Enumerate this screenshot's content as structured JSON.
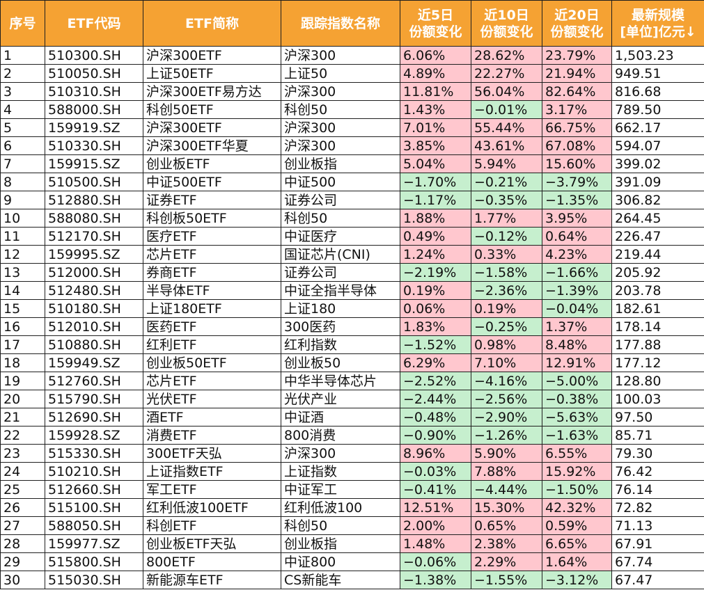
{
  "colors": {
    "header_bg": "#f5a233",
    "header_text": "#ffffff",
    "positive_bg": "#ffc7ce",
    "positive_text": "#9c0006",
    "negative_bg": "#c6efce",
    "negative_text": "#006100"
  },
  "header": {
    "index": "序号",
    "code": "ETF代码",
    "name": "ETF简称",
    "tracked_index": "跟踪指数名称",
    "chg5_line1": "近5日",
    "chg5_line2": "份额变化",
    "chg10_line1": "近10日",
    "chg10_line2": "份额变化",
    "chg20_line1": "近20日",
    "chg20_line2": "份额变化",
    "size_line1": "最新规模",
    "size_line2": "[单位]亿元↓"
  },
  "rows": [
    {
      "index": "1",
      "code": "510300.SH",
      "name": "沪深300ETF",
      "tracked": "沪深300",
      "chg5": "6.06%",
      "chg10": "28.62%",
      "chg20": "23.79%",
      "size": "1,503.23"
    },
    {
      "index": "2",
      "code": "510050.SH",
      "name": "上证50ETF",
      "tracked": "上证50",
      "chg5": "4.89%",
      "chg10": "22.27%",
      "chg20": "21.94%",
      "size": "949.51"
    },
    {
      "index": "3",
      "code": "510310.SH",
      "name": "沪深300ETF易方达",
      "tracked": "沪深300",
      "chg5": "11.81%",
      "chg10": "56.04%",
      "chg20": "82.64%",
      "size": "816.68"
    },
    {
      "index": "4",
      "code": "588000.SH",
      "name": "科创50ETF",
      "tracked": "科创50",
      "chg5": "1.43%",
      "chg10": "−0.01%",
      "chg20": "3.17%",
      "size": "789.50"
    },
    {
      "index": "5",
      "code": "159919.SZ",
      "name": "沪深300ETF",
      "tracked": "沪深300",
      "chg5": "7.01%",
      "chg10": "55.44%",
      "chg20": "66.75%",
      "size": "662.17"
    },
    {
      "index": "6",
      "code": "510330.SH",
      "name": "沪深300ETF华夏",
      "tracked": "沪深300",
      "chg5": "3.85%",
      "chg10": "43.61%",
      "chg20": "67.08%",
      "size": "594.07"
    },
    {
      "index": "7",
      "code": "159915.SZ",
      "name": "创业板ETF",
      "tracked": "创业板指",
      "chg5": "5.04%",
      "chg10": "5.94%",
      "chg20": "15.60%",
      "size": "399.02"
    },
    {
      "index": "8",
      "code": "510500.SH",
      "name": "中证500ETF",
      "tracked": "中证500",
      "chg5": "−1.70%",
      "chg10": "−0.21%",
      "chg20": "−3.79%",
      "size": "391.09"
    },
    {
      "index": "9",
      "code": "512880.SH",
      "name": "证券ETF",
      "tracked": "证券公司",
      "chg5": "−1.17%",
      "chg10": "−0.35%",
      "chg20": "−1.35%",
      "size": "306.82"
    },
    {
      "index": "10",
      "code": "588080.SH",
      "name": "科创板50ETF",
      "tracked": "科创50",
      "chg5": "1.88%",
      "chg10": "1.77%",
      "chg20": "3.95%",
      "size": "264.45"
    },
    {
      "index": "11",
      "code": "512170.SH",
      "name": "医疗ETF",
      "tracked": "中证医疗",
      "chg5": "0.49%",
      "chg10": "−0.12%",
      "chg20": "0.64%",
      "size": "226.47"
    },
    {
      "index": "12",
      "code": "159995.SZ",
      "name": "芯片ETF",
      "tracked": "国证芯片(CNI)",
      "chg5": "1.24%",
      "chg10": "0.33%",
      "chg20": "4.23%",
      "size": "219.44"
    },
    {
      "index": "13",
      "code": "512000.SH",
      "name": "券商ETF",
      "tracked": "证券公司",
      "chg5": "−2.19%",
      "chg10": "−1.58%",
      "chg20": "−1.66%",
      "size": "205.92"
    },
    {
      "index": "14",
      "code": "512480.SH",
      "name": "半导体ETF",
      "tracked": "中证全指半导体",
      "chg5": "0.19%",
      "chg10": "−2.36%",
      "chg20": "−1.39%",
      "size": "203.78"
    },
    {
      "index": "15",
      "code": "510180.SH",
      "name": "上证180ETF",
      "tracked": "上证180",
      "chg5": "0.06%",
      "chg10": "0.19%",
      "chg20": "−0.04%",
      "size": "182.61"
    },
    {
      "index": "16",
      "code": "512010.SH",
      "name": "医药ETF",
      "tracked": "300医药",
      "chg5": "1.83%",
      "chg10": "−0.25%",
      "chg20": "1.37%",
      "size": "178.14"
    },
    {
      "index": "17",
      "code": "510880.SH",
      "name": "红利ETF",
      "tracked": "红利指数",
      "chg5": "−1.52%",
      "chg10": "0.98%",
      "chg20": "8.48%",
      "size": "177.88"
    },
    {
      "index": "18",
      "code": "159949.SZ",
      "name": "创业板50ETF",
      "tracked": "创业板50",
      "chg5": "6.29%",
      "chg10": "7.10%",
      "chg20": "12.91%",
      "size": "177.12"
    },
    {
      "index": "19",
      "code": "512760.SH",
      "name": "芯片ETF",
      "tracked": "中华半导体芯片",
      "chg5": "−2.52%",
      "chg10": "−4.16%",
      "chg20": "−5.00%",
      "size": "128.80"
    },
    {
      "index": "20",
      "code": "515790.SH",
      "name": "光伏ETF",
      "tracked": "光伏产业",
      "chg5": "−2.44%",
      "chg10": "−2.56%",
      "chg20": "−0.38%",
      "size": "100.03"
    },
    {
      "index": "21",
      "code": "512690.SH",
      "name": "酒ETF",
      "tracked": "中证酒",
      "chg5": "−0.48%",
      "chg10": "−2.90%",
      "chg20": "−5.63%",
      "size": "97.50"
    },
    {
      "index": "22",
      "code": "159928.SZ",
      "name": "消费ETF",
      "tracked": "800消费",
      "chg5": "−0.90%",
      "chg10": "−1.26%",
      "chg20": "−1.63%",
      "size": "85.71"
    },
    {
      "index": "23",
      "code": "515330.SH",
      "name": "300ETF天弘",
      "tracked": "沪深300",
      "chg5": "8.96%",
      "chg10": "5.90%",
      "chg20": "6.55%",
      "size": "79.30"
    },
    {
      "index": "24",
      "code": "510210.SH",
      "name": "上证指数ETF",
      "tracked": "上证指数",
      "chg5": "−0.03%",
      "chg10": "7.88%",
      "chg20": "15.92%",
      "size": "76.42"
    },
    {
      "index": "25",
      "code": "512660.SH",
      "name": "军工ETF",
      "tracked": "中证军工",
      "chg5": "−0.41%",
      "chg10": "−4.44%",
      "chg20": "−1.50%",
      "size": "76.14"
    },
    {
      "index": "26",
      "code": "515100.SH",
      "name": "红利低波100ETF",
      "tracked": "红利低波100",
      "chg5": "12.51%",
      "chg10": "15.30%",
      "chg20": "42.32%",
      "size": "72.82"
    },
    {
      "index": "27",
      "code": "588050.SH",
      "name": "科创ETF",
      "tracked": "科创50",
      "chg5": "2.00%",
      "chg10": "0.65%",
      "chg20": "0.59%",
      "size": "71.13"
    },
    {
      "index": "28",
      "code": "159977.SZ",
      "name": "创业板ETF天弘",
      "tracked": "创业板指",
      "chg5": "1.48%",
      "chg10": "2.38%",
      "chg20": "6.65%",
      "size": "67.91"
    },
    {
      "index": "29",
      "code": "515800.SH",
      "name": "800ETF",
      "tracked": "中证800",
      "chg5": "−0.06%",
      "chg10": "2.29%",
      "chg20": "1.64%",
      "size": "67.74"
    },
    {
      "index": "30",
      "code": "515030.SH",
      "name": "新能源车ETF",
      "tracked": "CS新能车",
      "chg5": "−1.38%",
      "chg10": "−1.55%",
      "chg20": "−3.12%",
      "size": "67.47"
    }
  ]
}
